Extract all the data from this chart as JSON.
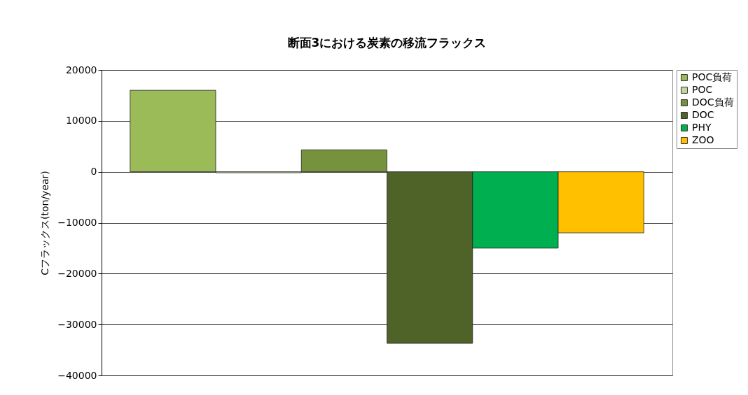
{
  "chart_data": {
    "type": "bar",
    "title": "断面3における炭素の移流フラックス",
    "ylabel": "Cフラックス(ton/year)",
    "categories": [
      null
    ],
    "series": [
      {
        "name": "POC負荷",
        "color": "#9bbb59",
        "values": [
          16000
        ]
      },
      {
        "name": "POC",
        "color": "#c3d69b",
        "values": [
          -200
        ]
      },
      {
        "name": "DOC負荷",
        "color": "#76923c",
        "values": [
          4300
        ]
      },
      {
        "name": "DOC",
        "color": "#4f6228",
        "values": [
          -33700
        ]
      },
      {
        "name": "PHY",
        "color": "#00b050",
        "values": [
          -15000
        ]
      },
      {
        "name": "ZOO",
        "color": "#ffc000",
        "values": [
          -12000
        ]
      }
    ],
    "ylim": [
      -40000,
      20000
    ],
    "yticks": [
      -40000,
      -30000,
      -20000,
      -10000,
      0,
      10000,
      20000
    ],
    "grid": "y",
    "legend": "right"
  }
}
